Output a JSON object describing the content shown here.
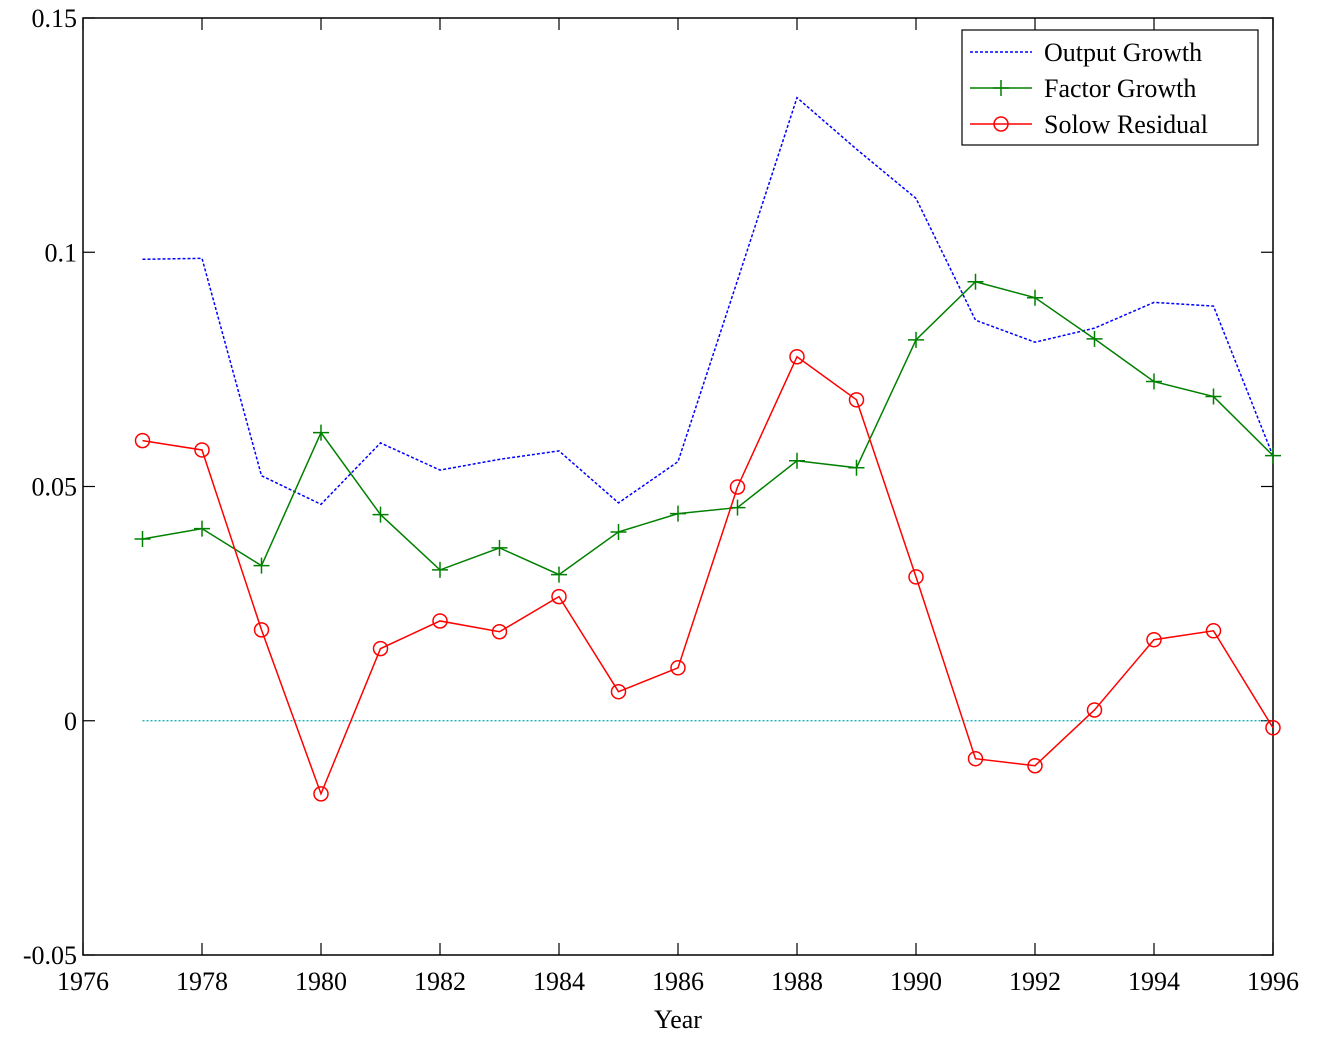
{
  "chart_data": {
    "type": "line",
    "x_label": "Year",
    "x": [
      1977,
      1978,
      1979,
      1980,
      1981,
      1982,
      1983,
      1984,
      1985,
      1986,
      1987,
      1988,
      1989,
      1990,
      1991,
      1992,
      1993,
      1994,
      1995,
      1996
    ],
    "series": [
      {
        "name": "Output Growth",
        "color": "#0000ff",
        "marker": "none",
        "dash": "dotted",
        "values": [
          0.0985,
          0.0987,
          0.0523,
          0.0462,
          0.0593,
          0.0535,
          0.0558,
          0.0576,
          0.0465,
          0.0553,
          0.094,
          0.133,
          0.122,
          0.1115,
          0.0855,
          0.0808,
          0.0838,
          0.0893,
          0.0885,
          0.0565
        ]
      },
      {
        "name": "Factor Growth",
        "color": "#008000",
        "marker": "plus",
        "dash": "solid",
        "values": [
          0.0388,
          0.041,
          0.0331,
          0.0615,
          0.044,
          0.0322,
          0.0369,
          0.0312,
          0.0403,
          0.0442,
          0.0455,
          0.0555,
          0.054,
          0.0813,
          0.0937,
          0.0903,
          0.0815,
          0.0724,
          0.0692,
          0.0566
        ]
      },
      {
        "name": "Solow Residual",
        "color": "#ff0000",
        "marker": "circle",
        "dash": "solid",
        "values": [
          0.0598,
          0.0578,
          0.0194,
          -0.0156,
          0.0154,
          0.0213,
          0.019,
          0.0265,
          0.0062,
          0.0113,
          0.0499,
          0.0777,
          0.0685,
          0.0307,
          -0.0081,
          -0.0096,
          0.0023,
          0.0173,
          0.0192,
          -0.0015
        ]
      }
    ],
    "hline": {
      "y": 0,
      "color": "#00aaaa"
    },
    "xlim": [
      1976,
      1996
    ],
    "xticks": [
      1976,
      1978,
      1980,
      1982,
      1984,
      1986,
      1988,
      1990,
      1992,
      1994,
      1996
    ],
    "ylim": [
      -0.05,
      0.15
    ],
    "yticks": [
      -0.05,
      0,
      0.05,
      0.1,
      0.15
    ],
    "grid": false,
    "legend": "upper right"
  }
}
